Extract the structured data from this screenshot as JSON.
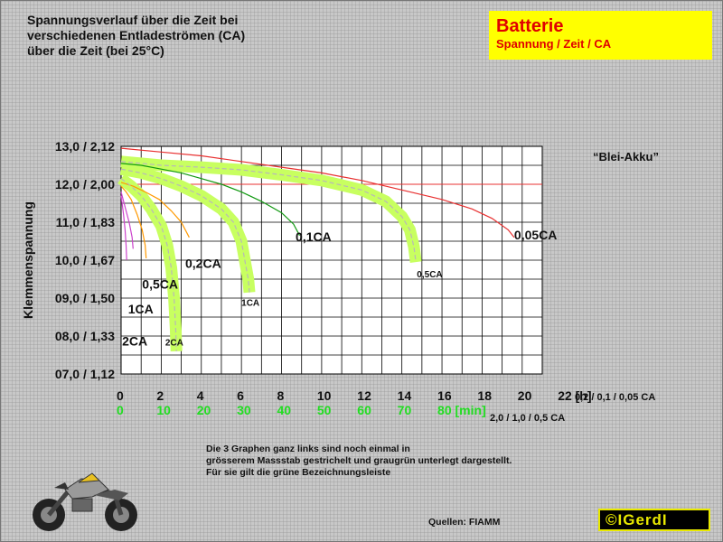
{
  "description": [
    "Spannungsverlauf über die Zeit bei",
    "verschiedenen Entladeströmen (CA)",
    "über die Zeit (bei 25°C)"
  ],
  "title_box": {
    "title": "Batterie",
    "subtitle": "Spannung / Zeit / CA"
  },
  "side_label": "“Blei-Akku”",
  "note": [
    "Die 3 Graphen ganz links sind noch einmal in",
    "grösserem Massstab gestrichelt und graugrün unterlegt dargestellt.",
    "Für sie gilt die grüne Bezeichnungsleiste"
  ],
  "source": "Quellen: FIAMM",
  "logo": "©IGerdI",
  "chart_data": {
    "type": "line",
    "ylabel": "Klemmenspannung",
    "yticks": [
      "13,0 / 2,12",
      "12,0 / 2,00",
      "11,0 / 1,83",
      "10,0 / 1,67",
      "09,0 / 1,50",
      "08,0 / 1,33",
      "07,0 / 1,12"
    ],
    "ytick_values": [
      13,
      12,
      11,
      10,
      9,
      8,
      7
    ],
    "ylim": [
      7,
      13
    ],
    "xticks_hours": [
      "0",
      "2",
      "4",
      "6",
      "8",
      "10",
      "12",
      "14",
      "16",
      "18",
      "20",
      "22 [h]"
    ],
    "xticks_min": [
      "0",
      "10",
      "20",
      "30",
      "40",
      "50",
      "60",
      "70",
      "80 [min]"
    ],
    "x_hours_label": "0,2 / 0,1 / 0,05 CA",
    "x_min_label": "2,0 / 1,0 / 0,5 CA",
    "xlim_hours": [
      0,
      21
    ],
    "grid": true,
    "series": [
      {
        "name": "0,05CA",
        "color": "#e83030",
        "unit": "h",
        "points": [
          [
            0,
            12.95
          ],
          [
            2,
            12.85
          ],
          [
            4,
            12.75
          ],
          [
            6,
            12.6
          ],
          [
            8,
            12.45
          ],
          [
            10,
            12.3
          ],
          [
            12,
            12.1
          ],
          [
            14,
            11.85
          ],
          [
            16,
            11.6
          ],
          [
            17.5,
            11.35
          ],
          [
            18.5,
            11.1
          ],
          [
            19.3,
            10.8
          ],
          [
            19.6,
            10.6
          ]
        ]
      },
      {
        "name": "0,1CA",
        "color": "#119911",
        "unit": "h",
        "points": [
          [
            0,
            12.55
          ],
          [
            1,
            12.5
          ],
          [
            2,
            12.4
          ],
          [
            3,
            12.3
          ],
          [
            4,
            12.15
          ],
          [
            5,
            12.0
          ],
          [
            6,
            11.8
          ],
          [
            7,
            11.55
          ],
          [
            8,
            11.25
          ],
          [
            8.6,
            10.95
          ],
          [
            8.9,
            10.65
          ]
        ]
      },
      {
        "name": "0,2CA",
        "color": "#ff9900",
        "unit": "h",
        "points": [
          [
            0,
            12.05
          ],
          [
            0.6,
            11.95
          ],
          [
            1.2,
            11.8
          ],
          [
            1.9,
            11.6
          ],
          [
            2.5,
            11.3
          ],
          [
            3.0,
            11.0
          ],
          [
            3.4,
            10.6
          ]
        ]
      },
      {
        "name": "0,5CA",
        "color": "#ff9900",
        "unit": "h",
        "points": [
          [
            0,
            11.95
          ],
          [
            0.25,
            11.8
          ],
          [
            0.5,
            11.6
          ],
          [
            0.8,
            11.2
          ],
          [
            1.05,
            10.8
          ],
          [
            1.2,
            10.4
          ],
          [
            1.25,
            10.05
          ]
        ]
      },
      {
        "name": "1CA",
        "color": "#cc44cc",
        "unit": "h",
        "points": [
          [
            0,
            11.8
          ],
          [
            0.1,
            11.6
          ],
          [
            0.25,
            11.3
          ],
          [
            0.4,
            11.0
          ],
          [
            0.55,
            10.6
          ],
          [
            0.6,
            10.3
          ]
        ]
      },
      {
        "name": "2CA",
        "color": "#cc44cc",
        "unit": "h",
        "points": [
          [
            0,
            11.7
          ],
          [
            0.05,
            11.5
          ],
          [
            0.12,
            11.2
          ],
          [
            0.2,
            10.8
          ],
          [
            0.25,
            10.4
          ],
          [
            0.28,
            10.0
          ]
        ]
      },
      {
        "name": "0,5CA",
        "color": "#b8b8b8",
        "dashed": true,
        "band": "#c8ff60",
        "unit": "min",
        "points": [
          [
            0,
            12.6
          ],
          [
            10,
            12.5
          ],
          [
            20,
            12.45
          ],
          [
            30,
            12.38
          ],
          [
            40,
            12.25
          ],
          [
            50,
            12.1
          ],
          [
            60,
            11.85
          ],
          [
            66,
            11.55
          ],
          [
            70,
            11.15
          ],
          [
            72,
            10.8
          ],
          [
            73,
            10.35
          ],
          [
            73.5,
            9.95
          ]
        ]
      },
      {
        "name": "1CA",
        "color": "#b8b8b8",
        "dashed": true,
        "band": "#c8ff60",
        "unit": "min",
        "points": [
          [
            0,
            12.4
          ],
          [
            5,
            12.3
          ],
          [
            10,
            12.15
          ],
          [
            15,
            11.95
          ],
          [
            20,
            11.7
          ],
          [
            25,
            11.35
          ],
          [
            28,
            11.0
          ],
          [
            30,
            10.5
          ],
          [
            31,
            9.9
          ],
          [
            31.7,
            9.5
          ],
          [
            32,
            9.15
          ]
        ]
      },
      {
        "name": "2CA",
        "color": "#b8b8b8",
        "dashed": true,
        "band": "#c8ff60",
        "unit": "min",
        "points": [
          [
            0,
            12.15
          ],
          [
            2.5,
            11.95
          ],
          [
            5,
            11.7
          ],
          [
            7.5,
            11.35
          ],
          [
            10,
            10.9
          ],
          [
            11.5,
            10.4
          ],
          [
            12.5,
            9.8
          ],
          [
            13.2,
            9.0
          ],
          [
            13.6,
            8.2
          ],
          [
            13.8,
            7.6
          ]
        ]
      }
    ],
    "series_labels": [
      {
        "text": "0,05CA",
        "x": 19.6,
        "y": 10.55,
        "big": true
      },
      {
        "text": "0,1CA",
        "x": 8.7,
        "y": 10.5,
        "big": true
      },
      {
        "text": "0,2CA",
        "x": 3.2,
        "y": 9.8,
        "big": true
      },
      {
        "text": "0,5CA",
        "x": 1.05,
        "y": 9.25,
        "big": true
      },
      {
        "text": "1CA",
        "x": 0.35,
        "y": 8.6,
        "big": true
      },
      {
        "text": "2CA",
        "x": 0.05,
        "y": 7.75,
        "big": true
      },
      {
        "text": "0,5CA",
        "x": 14.75,
        "y": 9.55,
        "big": false
      },
      {
        "text": "1CA",
        "x": 6.0,
        "y": 8.8,
        "big": false
      },
      {
        "text": "2CA",
        "x": 2.2,
        "y": 7.75,
        "big": false
      }
    ]
  }
}
